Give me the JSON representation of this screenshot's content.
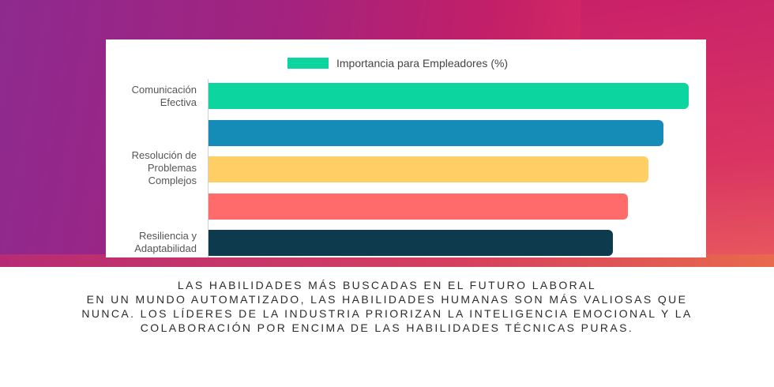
{
  "chart_data": {
    "type": "bar",
    "orientation": "horizontal",
    "legend": "Importancia para Empleadores (%)",
    "categories": [
      "Comunicación\nEfectiva",
      "",
      "Resolución de\nProblemas\nComplejos",
      "",
      "Resiliencia y\nAdaptabilidad"
    ],
    "values": [
      95,
      90,
      87,
      83,
      80
    ],
    "colors": [
      "#0dd5a0",
      "#158bb8",
      "#ffcf66",
      "#ff6b6b",
      "#0d3a4c"
    ],
    "xlim": [
      0,
      100
    ]
  },
  "caption": {
    "title": "LAS HABILIDADES MÁS BUSCADAS EN EL FUTURO LABORAL",
    "body": "EN UN MUNDO AUTOMATIZADO, LAS HABILIDADES HUMANAS SON MÁS VALIOSAS QUE NUNCA. LOS LÍDERES DE LA INDUSTRIA PRIORIZAN LA INTELIGENCIA EMOCIONAL Y LA COLABORACIÓN POR ENCIMA DE LAS HABILIDADES TÉCNICAS PURAS."
  }
}
